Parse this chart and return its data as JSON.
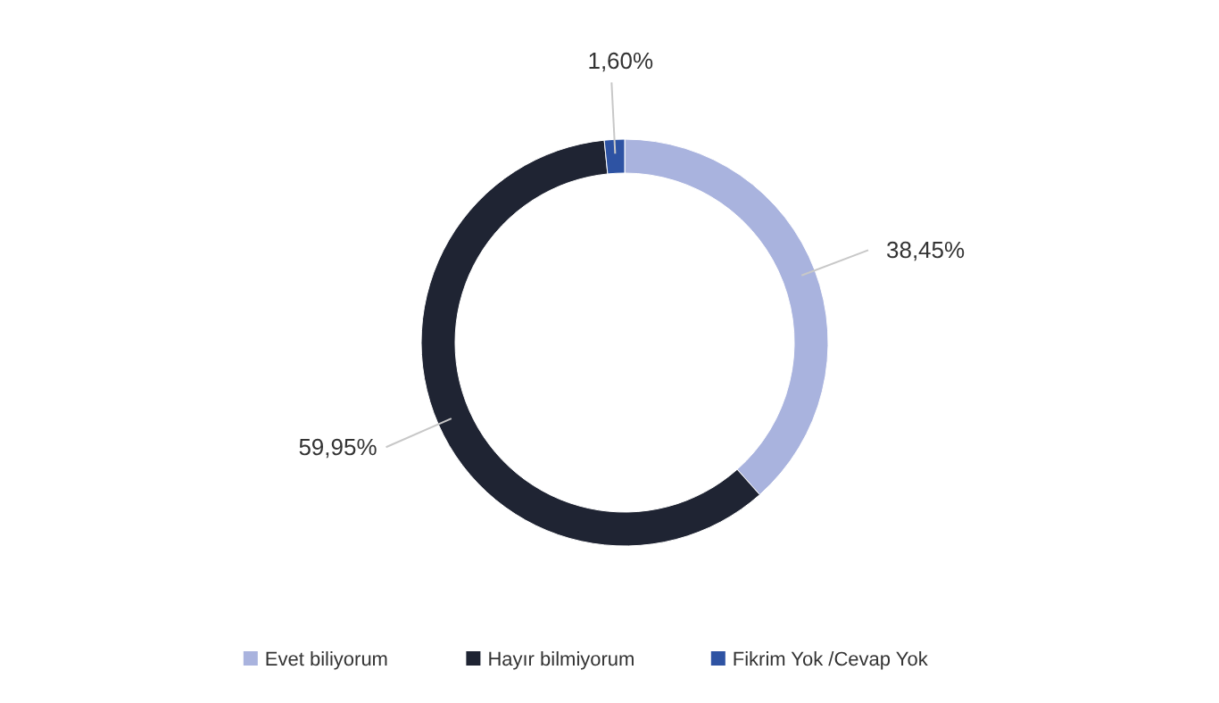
{
  "chart_data": {
    "type": "donut",
    "categories": [
      "Evet biliyorum",
      "Hayır bilmiyorum",
      "Fikrim Yok /Cevap Yok"
    ],
    "values": [
      38.45,
      59.95,
      1.6
    ],
    "colors": [
      "#a9b3de",
      "#1f2433",
      "#2e53a3"
    ],
    "value_labels": [
      "38,45%",
      "59,95%",
      "1,60%"
    ],
    "legend": "bottom"
  }
}
